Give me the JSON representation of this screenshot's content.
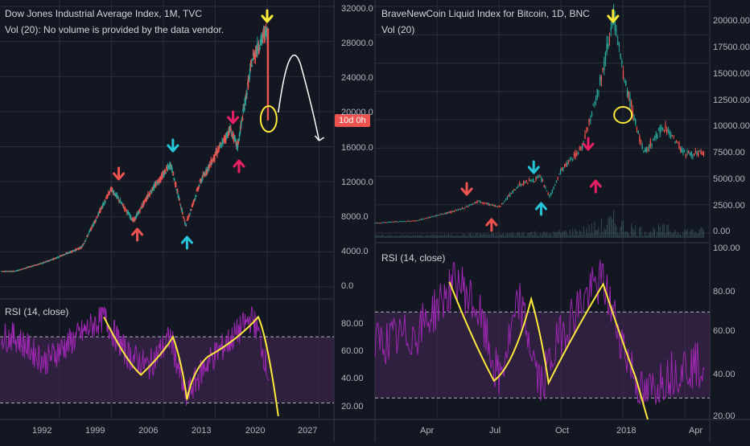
{
  "colors": {
    "background": "#131722",
    "grid": "#2a2e39",
    "up": "#26a69a",
    "down": "#ef5350",
    "rsi_line": "#9c27b0",
    "rsi_band": "#4a2a5a",
    "annotation_yellow": "#ffeb3b",
    "arrow_red": "#ef5350",
    "arrow_cyan": "#26c6da",
    "arrow_pink": "#e91e63",
    "chalk_white": "#ffffff"
  },
  "left_panel": {
    "title": "Dow Jones Industrial Average Index, 1M, TVC",
    "subtitle": "Vol (20): No volume is provided by the data vendor.",
    "rsi_label": "RSI (14, close)",
    "price_badge": "10d 0h",
    "price_ticks": [
      "32000.0",
      "28000.0",
      "24000.0",
      "20000.0",
      "16000.0",
      "12000.0",
      "8000.0",
      "4000.0",
      "0.0"
    ],
    "rsi_ticks": [
      "80.00",
      "60.00",
      "40.00",
      "20.00"
    ],
    "time_ticks": [
      "1992",
      "1999",
      "2006",
      "2013",
      "2020",
      "2027"
    ]
  },
  "right_panel": {
    "title": "BraveNewCoin Liquid Index for Bitcoin, 1D, BNC",
    "subtitle": "Vol (20)",
    "rsi_label": "RSI (14, close)",
    "price_ticks": [
      "20000.00",
      "17500.00",
      "15000.00",
      "12500.00",
      "10000.00",
      "7500.00",
      "5000.00",
      "2500.00",
      "0.00"
    ],
    "rsi_ticks": [
      "100.00",
      "80.00",
      "60.00",
      "40.00",
      "20.00"
    ],
    "time_ticks": [
      "Apr",
      "Jul",
      "Oct",
      "2018",
      "Apr"
    ]
  },
  "chart_data": [
    {
      "type": "line",
      "title": "Dow Jones Industrial Average Index, 1M, TVC",
      "xlabel": "",
      "ylabel": "",
      "ylim": [
        0,
        32000
      ],
      "x": [
        1986,
        1990,
        1995,
        1999,
        2002,
        2004,
        2007,
        2009,
        2011,
        2013,
        2015,
        2016,
        2018,
        2020,
        2020.2
      ],
      "series": [
        {
          "values": [
            1800,
            2800,
            4500,
            11200,
            7500,
            10500,
            14000,
            7000,
            12000,
            15000,
            18000,
            16000,
            26000,
            29500,
            19000
          ]
        }
      ],
      "rsi": {
        "ylim": [
          20,
          90
        ],
        "x": [
          1986,
          1990,
          1995,
          1998,
          2001,
          2004,
          2007,
          2009,
          2012,
          2015,
          2018,
          2019,
          2020,
          2021
        ],
        "values": [
          70,
          55,
          72,
          82,
          60,
          52,
          70,
          33,
          55,
          68,
          82,
          70,
          50,
          30
        ],
        "overbought": 70,
        "oversold": 30
      }
    },
    {
      "type": "line",
      "title": "BraveNewCoin Liquid Index for Bitcoin, 1D, BNC",
      "xlabel": "",
      "ylabel": "",
      "ylim": [
        0,
        20000
      ],
      "x": [
        "2017-01",
        "2017-03",
        "2017-05",
        "2017-06",
        "2017-07",
        "2017-08",
        "2017-09",
        "2017-09-15",
        "2017-10",
        "2017-11",
        "2017-12",
        "2017-12-17",
        "2018-01",
        "2018-02",
        "2018-03",
        "2018-04"
      ],
      "series": [
        {
          "values": [
            900,
            1100,
            2000,
            2800,
            2300,
            4300,
            4900,
            3200,
            5500,
            7500,
            14000,
            19500,
            14000,
            7000,
            9500,
            7000
          ]
        }
      ],
      "rsi": {
        "ylim": [
          20,
          100
        ],
        "x": [
          "2017-01",
          "2017-03",
          "2017-05",
          "2017-06",
          "2017-07",
          "2017-08",
          "2017-09",
          "2017-10",
          "2017-11",
          "2017-12",
          "2018-01",
          "2018-02",
          "2018-03",
          "2018-04"
        ],
        "values": [
          55,
          60,
          85,
          70,
          38,
          75,
          35,
          60,
          75,
          85,
          55,
          30,
          40,
          45
        ],
        "overbought": 70,
        "oversold": 30
      }
    }
  ]
}
